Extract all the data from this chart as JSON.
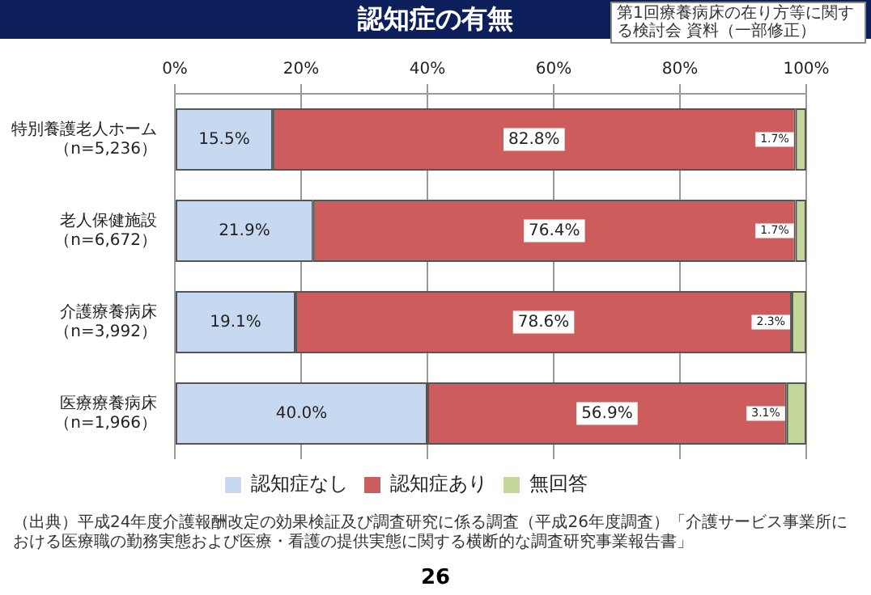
{
  "chart_data": {
    "type": "bar",
    "orientation": "horizontal",
    "stacked": true,
    "title": "認知症の有無",
    "annotations": [
      "第1回療養病床の在り方等に関する検討会 資料（一部修正）",
      "（出典）平成24年度介護報酬改定の効果検証及び調査研究に係る調査（平成26年度調査）「介護サービス事業所における医療職の勤務実態および医療・看護の提供実態に関する横断的な調査研究事業報告書」",
      "26"
    ],
    "categories": [
      "特別養護老人ホーム（n=5,236）",
      "老人保健施設（n=6,672）",
      "介護療養病床（n=3,992）",
      "医療療養病床（n=1,966）"
    ],
    "series": [
      {
        "name": "認知症なし",
        "color": "#c6d9f1",
        "values": [
          15.5,
          21.9,
          19.1,
          40.0
        ],
        "value_labels": [
          "15.5%",
          "21.9%",
          "19.1%",
          "40.0%"
        ]
      },
      {
        "name": "認知症あり",
        "color": "#cd5c5c",
        "values": [
          82.8,
          76.4,
          78.6,
          56.9
        ],
        "value_labels": [
          "82.8%",
          "76.4%",
          "78.6%",
          "56.9%"
        ]
      },
      {
        "name": "無回答",
        "color": "#c4d79b",
        "values": [
          1.7,
          1.7,
          2.3,
          3.1
        ],
        "value_labels": [
          "1.7%",
          "1.7%",
          "2.3%",
          "3.1%"
        ]
      }
    ],
    "xlim": [
      0,
      100
    ],
    "xticks": [
      {
        "value": 0,
        "label": "0%"
      },
      {
        "value": 20,
        "label": "20%"
      },
      {
        "value": 40,
        "label": "40%"
      },
      {
        "value": 60,
        "label": "60%"
      },
      {
        "value": 80,
        "label": "80%"
      },
      {
        "value": 100,
        "label": "100%"
      }
    ],
    "grid": "x",
    "legend": "bottom"
  }
}
